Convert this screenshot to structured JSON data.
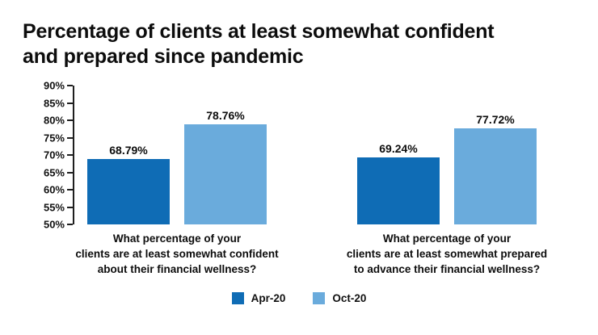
{
  "header": {
    "line1": "Percentage of clients at least somewhat confident",
    "line2": "and prepared since pandemic"
  },
  "chart_data": {
    "type": "bar",
    "title": "Percentage of clients at least somewhat confident and prepared since pandemic",
    "ylim": [
      50,
      90
    ],
    "y_ticks": [
      90,
      85,
      80,
      75,
      70,
      65,
      60,
      55,
      50
    ],
    "y_tick_suffix": "%",
    "grid": false,
    "legend_position": "bottom",
    "categories": [
      [
        "What percentage of your",
        "clients are at least somewhat confident",
        "about their financial wellness?"
      ],
      [
        "What percentage of your",
        "clients are at least somewhat prepared",
        "to advance their financial wellness?"
      ]
    ],
    "series": [
      {
        "name": "Apr-20",
        "color": "#0f6cb5",
        "values": [
          68.79,
          69.24
        ]
      },
      {
        "name": "Oct-20",
        "color": "#6aabdc",
        "values": [
          78.76,
          77.72
        ]
      }
    ],
    "value_labels": [
      "68.79%",
      "78.76%",
      "69.24%",
      "77.72%"
    ]
  }
}
